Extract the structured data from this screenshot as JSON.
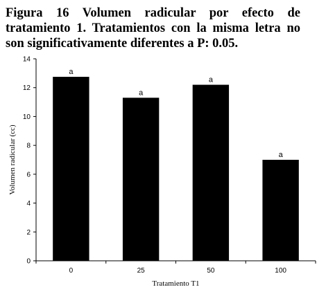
{
  "caption": {
    "text": "Figura 16  Volumen radicular por efecto de tratamiento 1. Tratamientos con la misma letra no son significativamente diferentes a P: 0.05."
  },
  "chart_data": {
    "type": "bar",
    "categories": [
      "0",
      "25",
      "50",
      "100"
    ],
    "values": [
      12.75,
      11.3,
      12.2,
      7.0
    ],
    "data_labels": [
      "a",
      "a",
      "a",
      "a"
    ],
    "xlabel": "Tratamiento T1",
    "ylabel": "Volumen radicular (cc)",
    "ylim": [
      0,
      14
    ],
    "yticks": [
      0,
      2,
      4,
      6,
      8,
      10,
      12,
      14
    ],
    "grid": false,
    "legend": "none",
    "bar_color": "#000000"
  }
}
